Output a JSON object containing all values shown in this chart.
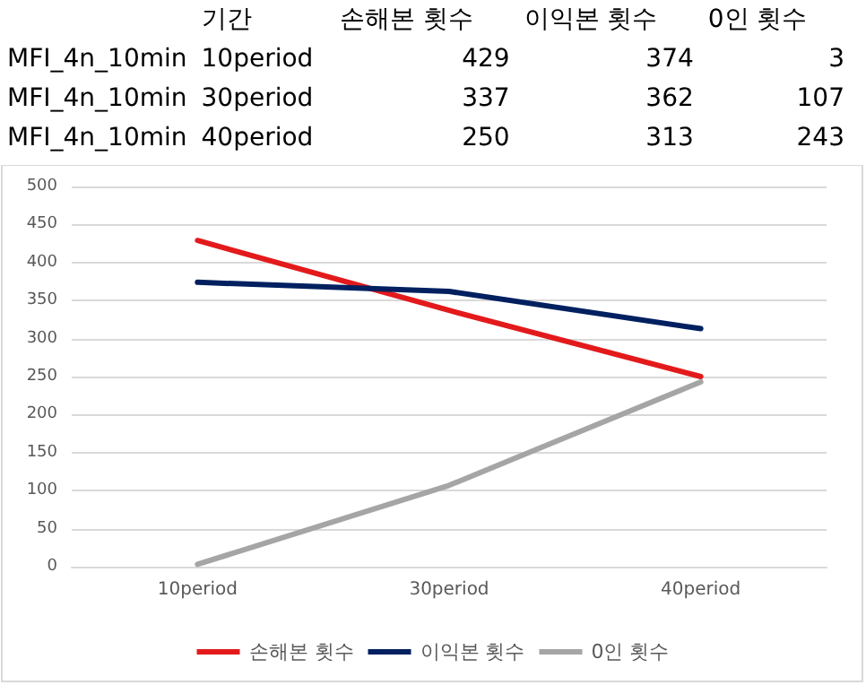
{
  "chart_data": [
    {
      "type": "other",
      "annotations": [
        "기간",
        "손해본 횟수",
        "이익본 횟수",
        "0인 횟수",
        "MFI_4n_10min",
        "10period",
        "429",
        "374",
        "3",
        "MFI_4n_10min",
        "30period",
        "337",
        "362",
        "107",
        "MFI_4n_10min",
        "40period",
        "250",
        "313",
        "243"
      ]
    },
    {
      "type": "line",
      "categories": [
        "10period",
        "30period",
        "40period"
      ],
      "series": [
        {
          "name": "손해본 횟수",
          "color": "#e31a1c",
          "values": [
            429,
            337,
            250
          ]
        },
        {
          "name": "이익본 횟수",
          "color": "#002060",
          "values": [
            374,
            362,
            313
          ]
        },
        {
          "name": "0인 횟수",
          "color": "#a5a5a5",
          "values": [
            3,
            107,
            243
          ]
        }
      ],
      "ylim": [
        0,
        500
      ],
      "yticks": [
        0,
        50,
        100,
        150,
        200,
        250,
        300,
        350,
        400,
        450,
        500
      ],
      "grid": "y",
      "legend": "bottom",
      "marker": "none",
      "line_style": "solid"
    }
  ]
}
